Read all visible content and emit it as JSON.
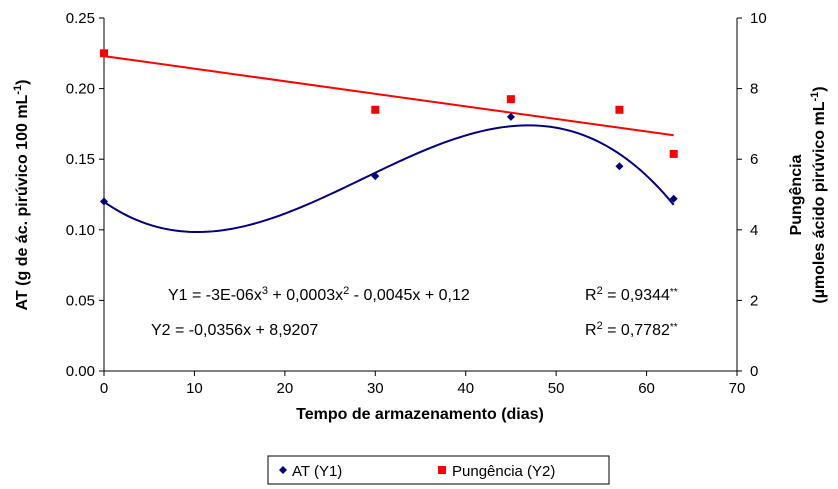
{
  "chart_data": {
    "type": "scatter",
    "x_label": "Tempo de armazenamento (dias)",
    "y_left_label": "AT (g de ác. pirúvico 100 mL",
    "y_left_label_sup": "-1",
    "y_left_label_end": ")",
    "y_right_label_line1": "Pungência",
    "y_right_label_line2": "(µmoles ácido pirúvico mL",
    "y_right_label_sup": "-1",
    "y_right_label_end": ")",
    "x_range": [
      0,
      70
    ],
    "y_left_range": [
      0,
      0.25
    ],
    "y_right_range": [
      0,
      10
    ],
    "x_ticks": [
      "0",
      "10",
      "20",
      "30",
      "40",
      "50",
      "60",
      "70"
    ],
    "y_left_ticks": [
      "0.00",
      "0.05",
      "0.10",
      "0.15",
      "0.20",
      "0.25"
    ],
    "y_right_ticks": [
      "0",
      "2",
      "4",
      "6",
      "8",
      "10"
    ],
    "series": [
      {
        "name": "AT (Y1)",
        "axis": "left",
        "marker": "diamond",
        "color": "#000080",
        "x": [
          0,
          30,
          45,
          57,
          63
        ],
        "y": [
          0.12,
          0.138,
          0.18,
          0.145,
          0.122
        ],
        "fit": {
          "type": "cubic",
          "x_range": [
            0,
            63
          ]
        }
      },
      {
        "name": "Pungência (Y2)",
        "axis": "right",
        "marker": "square",
        "color": "#ff0000",
        "x": [
          0,
          30,
          45,
          57,
          63
        ],
        "y": [
          9.0,
          7.4,
          7.7,
          7.4,
          6.15
        ],
        "fit": {
          "type": "linear",
          "slope": -0.0356,
          "intercept": 8.9207,
          "x_range": [
            0,
            63
          ]
        }
      }
    ],
    "grid": false,
    "legend_position": "bottom-center"
  },
  "equations": {
    "y1_text": "Y1 = -3E-06x",
    "y1_exp1": "3",
    "y1_mid": " + 0,0003x",
    "y1_exp2": "2",
    "y1_end": " - 0,0045x + 0,12",
    "r1_prefix": "R",
    "r1_exp": "2",
    "r1_value": " = 0,9344",
    "r1_sig": "**",
    "y2_text": "Y2 = -0,0356x + 8,9207",
    "r2_prefix": "R",
    "r2_exp": "2",
    "r2_value": " = 0,7782",
    "r2_sig": "**"
  },
  "legend": {
    "items": [
      {
        "label": "AT (Y1)",
        "color": "#000080",
        "marker": "diamond"
      },
      {
        "label": "Pungência (Y2)",
        "color": "#ff0000",
        "marker": "square"
      }
    ]
  }
}
